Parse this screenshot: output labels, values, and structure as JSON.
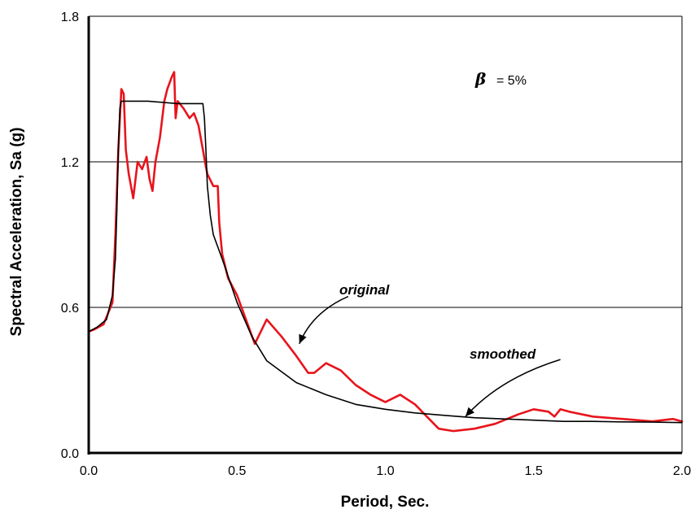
{
  "chart_data": {
    "type": "line",
    "xlabel": "Period, Sec.",
    "ylabel": "Spectral Acceleration, Sa  (g)",
    "xlim": [
      0.0,
      2.0
    ],
    "ylim": [
      0.0,
      1.8
    ],
    "x_ticks": [
      "0.0",
      "0.5",
      "1.0",
      "1.5",
      "2.0"
    ],
    "y_ticks": [
      "0.0",
      "0.6",
      "1.2",
      "1.8"
    ],
    "grid": "horizontal",
    "damping_label": {
      "symbol": "β",
      "text": "=  5%"
    },
    "annotations": [
      {
        "text": "original",
        "target": [
          0.71,
          0.45
        ],
        "label_at": [
          0.875,
          0.645
        ]
      },
      {
        "text": "smoothed",
        "target": [
          1.27,
          0.15
        ],
        "label_at": [
          1.59,
          0.385
        ]
      }
    ],
    "series": [
      {
        "key": "original",
        "color": "#e8141c",
        "x": [
          0.0,
          0.02,
          0.05,
          0.08,
          0.09,
          0.1,
          0.11,
          0.118,
          0.125,
          0.135,
          0.15,
          0.165,
          0.18,
          0.195,
          0.205,
          0.215,
          0.225,
          0.24,
          0.255,
          0.265,
          0.28,
          0.288,
          0.293,
          0.3,
          0.32,
          0.34,
          0.355,
          0.37,
          0.385,
          0.395,
          0.4,
          0.42,
          0.435,
          0.44,
          0.45,
          0.47,
          0.5,
          0.53,
          0.56,
          0.6,
          0.65,
          0.7,
          0.74,
          0.76,
          0.8,
          0.85,
          0.9,
          0.95,
          1.0,
          1.05,
          1.1,
          1.14,
          1.18,
          1.23,
          1.3,
          1.37,
          1.45,
          1.5,
          1.55,
          1.57,
          1.59,
          1.62,
          1.7,
          1.8,
          1.9,
          1.97,
          2.0
        ],
        "y": [
          0.5,
          0.51,
          0.53,
          0.62,
          0.9,
          1.25,
          1.5,
          1.48,
          1.25,
          1.15,
          1.05,
          1.2,
          1.17,
          1.22,
          1.13,
          1.08,
          1.2,
          1.3,
          1.45,
          1.5,
          1.55,
          1.57,
          1.38,
          1.45,
          1.42,
          1.38,
          1.4,
          1.35,
          1.25,
          1.18,
          1.15,
          1.1,
          1.1,
          0.95,
          0.82,
          0.72,
          0.65,
          0.55,
          0.45,
          0.55,
          0.48,
          0.4,
          0.33,
          0.33,
          0.37,
          0.34,
          0.28,
          0.24,
          0.21,
          0.24,
          0.2,
          0.15,
          0.1,
          0.09,
          0.1,
          0.12,
          0.16,
          0.18,
          0.17,
          0.15,
          0.18,
          0.17,
          0.15,
          0.14,
          0.13,
          0.14,
          0.13
        ]
      },
      {
        "key": "smoothed",
        "color": "#000000",
        "x": [
          0.0,
          0.03,
          0.06,
          0.08,
          0.09,
          0.095,
          0.1,
          0.105,
          0.11,
          0.15,
          0.2,
          0.3,
          0.385,
          0.39,
          0.395,
          0.4,
          0.41,
          0.42,
          0.45,
          0.5,
          0.55,
          0.6,
          0.7,
          0.8,
          0.9,
          1.0,
          1.1,
          1.2,
          1.3,
          1.4,
          1.5,
          1.6,
          1.7,
          1.8,
          1.9,
          2.0
        ],
        "y": [
          0.5,
          0.52,
          0.55,
          0.65,
          0.8,
          1.0,
          1.25,
          1.42,
          1.45,
          1.45,
          1.45,
          1.44,
          1.44,
          1.38,
          1.25,
          1.1,
          0.98,
          0.9,
          0.8,
          0.62,
          0.48,
          0.38,
          0.29,
          0.24,
          0.2,
          0.18,
          0.165,
          0.155,
          0.145,
          0.14,
          0.135,
          0.13,
          0.13,
          0.128,
          0.127,
          0.125
        ]
      }
    ]
  }
}
